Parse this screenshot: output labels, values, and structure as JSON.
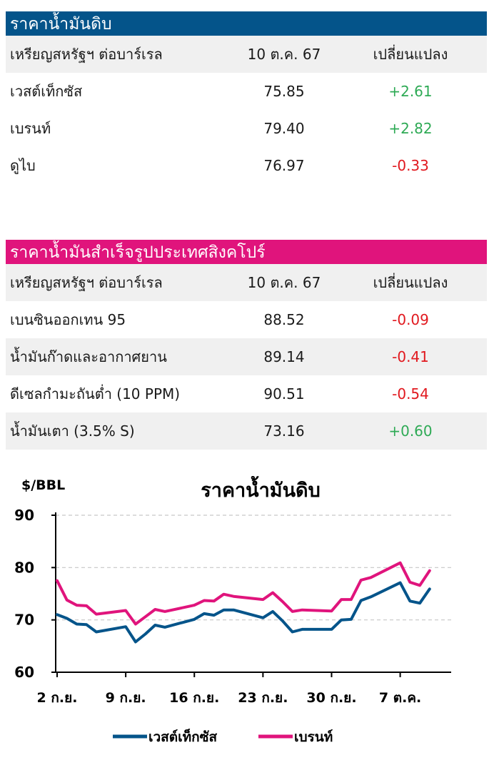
{
  "crude_table": {
    "title": "ราคาน้ำมันดิบ",
    "headers": [
      "เหรียญสหรัฐฯ ต่อบาร์เรล",
      "10 ต.ค. 67",
      "เปลี่ยนแปลง"
    ],
    "rows": [
      {
        "name": "เวสต์เท็กซัส",
        "price": "75.85",
        "change": "+2.61"
      },
      {
        "name": "เบรนท์",
        "price": "79.40",
        "change": "+2.82"
      },
      {
        "name": "ดูไบ",
        "price": "76.97",
        "change": "-0.33"
      }
    ]
  },
  "singapore_table": {
    "title": "ราคาน้ำมันสำเร็จรูปประเทศสิงคโปร์",
    "headers": [
      "เหรียญสหรัฐฯ ต่อบาร์เรล",
      "10 ต.ค. 67",
      "เปลี่ยนแปลง"
    ],
    "rows": [
      {
        "name": "เบนซินออกเทน 95",
        "price": "88.52",
        "change": "-0.09"
      },
      {
        "name": "น้ำมันก๊าดและอากาศยาน",
        "price": "89.14",
        "change": "-0.41"
      },
      {
        "name": "ดีเซลกำมะถันต่ำ (10 PPM)",
        "price": "90.51",
        "change": "-0.54"
      },
      {
        "name": "น้ำมันเตา (3.5% S)",
        "price": "73.16",
        "change": "+0.60"
      }
    ]
  },
  "colors": {
    "up": "#2eaa55",
    "down": "#e1181e",
    "wti": "#04548a",
    "brent": "#e0147c"
  },
  "chart_data": {
    "type": "line",
    "title": "ราคาน้ำมันดิบ",
    "ylabel": "$/BBL",
    "ylim": [
      60,
      90
    ],
    "yticks": [
      60,
      70,
      80,
      90
    ],
    "xlim": [
      "2024-09-02",
      "2024-10-10"
    ],
    "xticks": [
      {
        "date": "2024-09-02",
        "label": "2 ก.ย."
      },
      {
        "date": "2024-09-09",
        "label": "9 ก.ย."
      },
      {
        "date": "2024-09-16",
        "label": "16 ก.ย."
      },
      {
        "date": "2024-09-23",
        "label": "23 ก.ย."
      },
      {
        "date": "2024-09-30",
        "label": "30 ก.ย."
      },
      {
        "date": "2024-10-07",
        "label": "7 ต.ค."
      }
    ],
    "x": [
      "2024-09-02",
      "2024-09-03",
      "2024-09-04",
      "2024-09-05",
      "2024-09-06",
      "2024-09-09",
      "2024-09-10",
      "2024-09-11",
      "2024-09-12",
      "2024-09-13",
      "2024-09-16",
      "2024-09-17",
      "2024-09-18",
      "2024-09-19",
      "2024-09-20",
      "2024-09-23",
      "2024-09-24",
      "2024-09-25",
      "2024-09-26",
      "2024-09-27",
      "2024-09-30",
      "2024-10-01",
      "2024-10-02",
      "2024-10-03",
      "2024-10-04",
      "2024-10-07",
      "2024-10-08",
      "2024-10-09",
      "2024-10-10"
    ],
    "series": [
      {
        "name": "เวสต์เท็กซัส",
        "color": "#04548a",
        "values": [
          71.0,
          70.3,
          69.2,
          69.1,
          67.7,
          68.7,
          65.8,
          67.3,
          69.0,
          68.6,
          70.1,
          71.2,
          70.9,
          71.9,
          71.9,
          70.4,
          71.6,
          69.8,
          67.7,
          68.2,
          68.2,
          70.0,
          70.1,
          73.7,
          74.4,
          77.1,
          73.6,
          73.2,
          75.9
        ]
      },
      {
        "name": "เบรนท์",
        "color": "#e0147c",
        "values": [
          77.5,
          73.8,
          72.8,
          72.7,
          71.1,
          71.8,
          69.2,
          70.6,
          72.0,
          71.6,
          72.8,
          73.7,
          73.6,
          74.9,
          74.5,
          73.9,
          75.2,
          73.5,
          71.6,
          71.9,
          71.7,
          73.9,
          73.9,
          77.6,
          78.1,
          80.9,
          77.2,
          76.6,
          79.4
        ]
      }
    ],
    "legend": "bottom",
    "grid": true
  }
}
